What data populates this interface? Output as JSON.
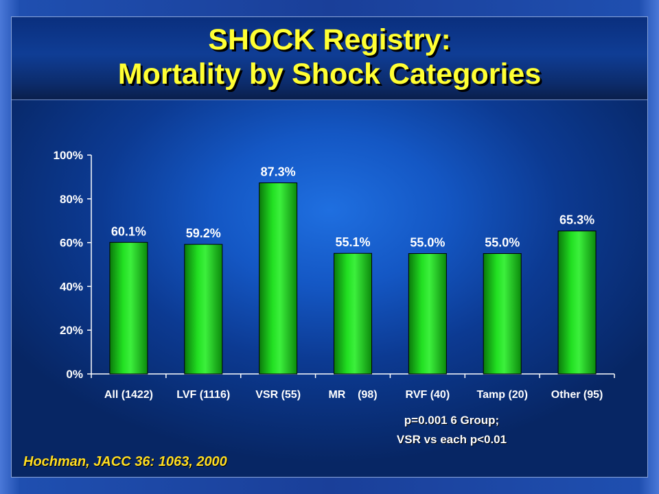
{
  "slide": {
    "title_line1": "SHOCK Registry:",
    "title_line2": "Mortality by Shock Categories",
    "note_line1": "p=0.001 6 Group;",
    "note_line2": "VSR vs each p<0.01",
    "citation": "Hochman, JACC 36: 1063, 2000",
    "colors": {
      "title": "#ffff33",
      "bar": "#22dd22",
      "citation": "#ffdd22"
    }
  },
  "chart_data": {
    "type": "bar",
    "categories": [
      "All (1422)",
      "LVF (1116)",
      "VSR (55)",
      "MR    (98)",
      "RVF (40)",
      "Tamp (20)",
      "Other (95)"
    ],
    "values": [
      60.1,
      59.2,
      87.3,
      55.1,
      55.0,
      55.0,
      65.3
    ],
    "data_labels": [
      "60.1%",
      "59.2%",
      "87.3%",
      "55.1%",
      "55.0%",
      "55.0%",
      "65.3%"
    ],
    "yticks": [
      "0%",
      "20%",
      "40%",
      "60%",
      "80%",
      "100%"
    ],
    "ylim": [
      0,
      100
    ],
    "grid": false,
    "legend": "none"
  }
}
